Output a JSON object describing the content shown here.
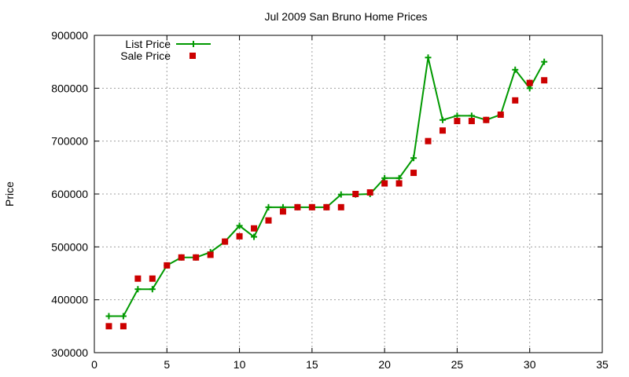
{
  "chart_data": {
    "type": "line",
    "title": "Jul 2009 San Bruno Home Prices",
    "xlabel": "",
    "ylabel": "Price",
    "xlim": [
      0,
      35
    ],
    "ylim": [
      300000,
      900000
    ],
    "x_ticks": [
      0,
      5,
      10,
      15,
      20,
      25,
      30,
      35
    ],
    "y_ticks": [
      300000,
      400000,
      500000,
      600000,
      700000,
      800000,
      900000
    ],
    "x_tick_labels": [
      "0",
      "5",
      "10",
      "15",
      "20",
      "25",
      "30",
      "35"
    ],
    "y_tick_labels": [
      "300000",
      "400000",
      "500000",
      "600000",
      "700000",
      "800000",
      "900000"
    ],
    "grid": true,
    "legend_position": "top-left",
    "series": [
      {
        "name": "List Price",
        "type": "linespoints",
        "color": "#009900",
        "marker": "plus",
        "x": [
          1,
          2,
          3,
          4,
          5,
          6,
          7,
          8,
          9,
          10,
          11,
          12,
          13,
          14,
          15,
          16,
          17,
          18,
          19,
          20,
          21,
          22,
          23,
          24,
          25,
          26,
          27,
          28,
          29,
          30,
          31
        ],
        "values": [
          369000,
          369000,
          420000,
          420000,
          465000,
          480000,
          480000,
          490000,
          510000,
          540000,
          519000,
          575000,
          575000,
          575000,
          575000,
          575000,
          599000,
          599000,
          600000,
          630000,
          630000,
          668000,
          858000,
          740000,
          748000,
          748000,
          740000,
          750000,
          835000,
          800000,
          850000
        ]
      },
      {
        "name": "Sale Price",
        "type": "points",
        "color": "#cc0000",
        "marker": "square",
        "x": [
          1,
          2,
          3,
          4,
          5,
          6,
          7,
          8,
          9,
          10,
          11,
          12,
          13,
          14,
          15,
          16,
          17,
          18,
          19,
          20,
          21,
          22,
          23,
          24,
          25,
          26,
          27,
          28,
          29,
          30,
          31
        ],
        "values": [
          350000,
          350000,
          440000,
          440000,
          465000,
          480000,
          480000,
          485000,
          510000,
          520000,
          535000,
          550000,
          567000,
          575000,
          575000,
          575000,
          575000,
          600000,
          603000,
          620000,
          620000,
          640000,
          700000,
          720000,
          738000,
          738000,
          740000,
          750000,
          777000,
          810000,
          815000
        ]
      }
    ]
  }
}
